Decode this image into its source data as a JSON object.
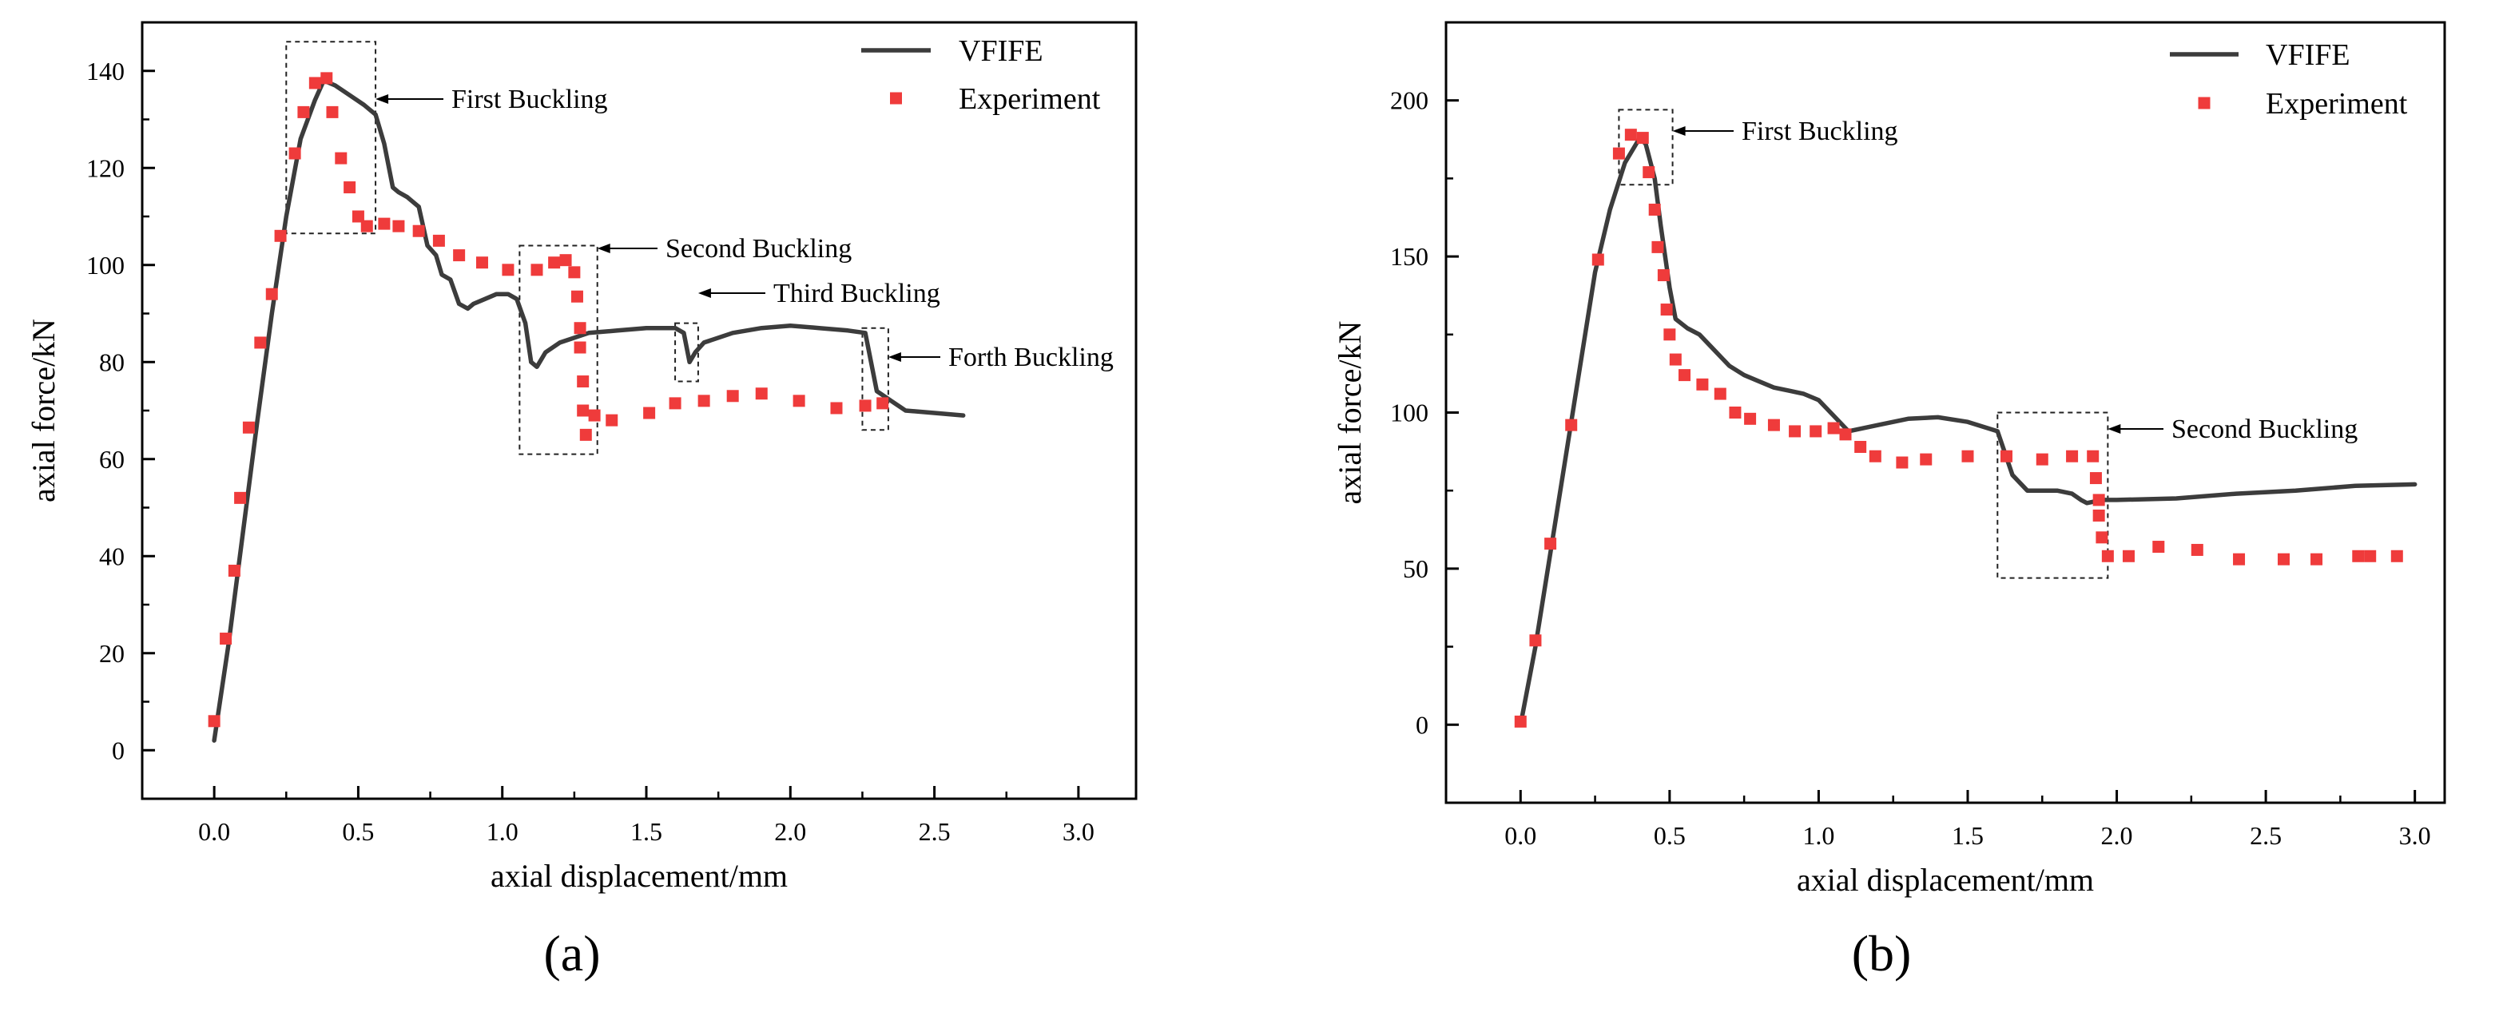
{
  "colors": {
    "vfife": "#3c3c3c",
    "experiment": "#ef3b3b",
    "axis": "#000000"
  },
  "chart_data": [
    {
      "panel": "(a)",
      "type": "line+scatter",
      "xlabel": "axial displacement/mm",
      "ylabel": "axial force/kN",
      "xlim": [
        -0.25,
        3.2
      ],
      "ylim": [
        -10,
        150
      ],
      "xticks": [
        0.0,
        0.5,
        1.0,
        1.5,
        2.0,
        2.5,
        3.0
      ],
      "xtick_labels": [
        "0.0",
        "0.5",
        "1.0",
        "1.5",
        "2.0",
        "2.5",
        "3.0"
      ],
      "yticks": [
        0,
        20,
        40,
        60,
        80,
        100,
        120,
        140
      ],
      "ytick_labels": [
        "0",
        "20",
        "40",
        "60",
        "80",
        "100",
        "120",
        "140"
      ],
      "legend": {
        "position": "top-right",
        "entries": [
          "VFIFE",
          "Experiment"
        ]
      },
      "series": [
        {
          "name": "VFIFE",
          "style": "line",
          "x": [
            0.0,
            0.05,
            0.1,
            0.15,
            0.2,
            0.25,
            0.3,
            0.35,
            0.38,
            0.42,
            0.47,
            0.52,
            0.56,
            0.59,
            0.62,
            0.64,
            0.67,
            0.71,
            0.74,
            0.77,
            0.79,
            0.82,
            0.85,
            0.88,
            0.9,
            0.94,
            0.98,
            1.02,
            1.05,
            1.08,
            1.1,
            1.12,
            1.15,
            1.2,
            1.3,
            1.4,
            1.5,
            1.6,
            1.63,
            1.65,
            1.67,
            1.7,
            1.8,
            1.9,
            2.0,
            2.1,
            2.2,
            2.26,
            2.28,
            2.3,
            2.35,
            2.4,
            2.5,
            2.6
          ],
          "y": [
            2,
            22,
            45,
            68,
            90,
            110,
            126,
            134,
            138,
            137,
            135,
            133,
            131,
            125,
            116,
            115,
            114,
            112,
            104,
            102,
            98,
            97,
            92,
            91,
            92,
            93,
            94,
            94,
            93,
            88,
            80,
            79,
            82,
            84,
            86,
            86.5,
            87,
            87,
            86,
            80,
            82,
            84,
            86,
            87,
            87.5,
            87,
            86.5,
            86,
            80,
            74,
            72,
            70,
            69.5,
            69
          ]
        },
        {
          "name": "Experiment",
          "style": "marker-square",
          "x": [
            0.0,
            0.04,
            0.07,
            0.09,
            0.12,
            0.16,
            0.2,
            0.23,
            0.28,
            0.31,
            0.35,
            0.39,
            0.41,
            0.44,
            0.47,
            0.5,
            0.53,
            0.59,
            0.64,
            0.71,
            0.78,
            0.85,
            0.93,
            1.02,
            1.12,
            1.18,
            1.22,
            1.25,
            1.26,
            1.27,
            1.27,
            1.28,
            1.28,
            1.29,
            1.32,
            1.38,
            1.51,
            1.6,
            1.7,
            1.8,
            1.9,
            2.03,
            2.16,
            2.26,
            2.32
          ],
          "y": [
            6,
            23,
            37,
            52,
            66.5,
            84,
            94,
            106,
            123,
            131.5,
            137.5,
            138.5,
            131.5,
            122,
            116,
            110,
            108,
            108.5,
            108,
            107,
            105,
            102,
            100.5,
            99,
            99,
            100.5,
            101,
            98.5,
            93.5,
            87,
            83,
            76,
            70,
            65,
            69,
            68,
            69.5,
            71.5,
            72,
            73,
            73.5,
            72,
            70.5,
            71,
            71.5
          ]
        }
      ],
      "annotations": [
        {
          "text": "First Buckling",
          "box": {
            "x": [
              0.25,
              0.56
            ],
            "y": [
              106.5,
              146
            ]
          }
        },
        {
          "text": "Second Buckling",
          "box": {
            "x": [
              1.06,
              1.33
            ],
            "y": [
              61,
              104
            ]
          }
        },
        {
          "text": "Third Buckling",
          "box": {
            "x": [
              1.6,
              1.68
            ],
            "y": [
              76,
              88
            ]
          }
        },
        {
          "text": "Forth Buckling",
          "box": {
            "x": [
              2.25,
              2.34
            ],
            "y": [
              66,
              87
            ]
          }
        }
      ],
      "caption": "(a)"
    },
    {
      "panel": "(b)",
      "type": "line+scatter",
      "xlabel": "axial displacement/mm",
      "ylabel": "axial force/kN",
      "xlim": [
        -0.25,
        3.1
      ],
      "ylim": [
        -25,
        225
      ],
      "xticks": [
        0.0,
        0.5,
        1.0,
        1.5,
        2.0,
        2.5,
        3.0
      ],
      "xtick_labels": [
        "0.0",
        "0.5",
        "1.0",
        "1.5",
        "2.0",
        "2.5",
        "3.0"
      ],
      "yticks": [
        0,
        50,
        100,
        150,
        200
      ],
      "ytick_labels": [
        "0",
        "50",
        "100",
        "150",
        "200"
      ],
      "legend": {
        "position": "top-right",
        "entries": [
          "VFIFE",
          "Experiment"
        ]
      },
      "series": [
        {
          "name": "VFIFE",
          "style": "line",
          "x": [
            0.0,
            0.05,
            0.1,
            0.15,
            0.2,
            0.25,
            0.3,
            0.35,
            0.4,
            0.42,
            0.45,
            0.47,
            0.5,
            0.52,
            0.56,
            0.6,
            0.65,
            0.7,
            0.75,
            0.8,
            0.85,
            0.9,
            0.95,
            1.0,
            1.05,
            1.08,
            1.1,
            1.2,
            1.3,
            1.4,
            1.5,
            1.6,
            1.65,
            1.7,
            1.8,
            1.85,
            1.88,
            1.9,
            1.95,
            2.0,
            2.2,
            2.4,
            2.6,
            2.8,
            3.0
          ],
          "y": [
            0,
            25,
            55,
            85,
            115,
            145,
            165,
            180,
            188,
            186,
            175,
            160,
            140,
            130,
            127,
            125,
            120,
            115,
            112,
            110,
            108,
            107,
            106,
            104,
            99,
            96,
            94,
            96,
            98,
            98.5,
            97,
            94,
            80,
            75,
            75,
            74,
            72,
            71,
            72,
            72,
            72.5,
            74,
            75,
            76.5,
            77
          ]
        },
        {
          "name": "Experiment",
          "style": "marker-square",
          "x": [
            0.0,
            0.05,
            0.1,
            0.17,
            0.26,
            0.33,
            0.37,
            0.41,
            0.43,
            0.45,
            0.46,
            0.48,
            0.49,
            0.5,
            0.52,
            0.55,
            0.61,
            0.67,
            0.72,
            0.77,
            0.85,
            0.92,
            0.99,
            1.05,
            1.09,
            1.14,
            1.19,
            1.28,
            1.36,
            1.5,
            1.63,
            1.75,
            1.85,
            1.92,
            1.93,
            1.94,
            1.94,
            1.95,
            1.97,
            2.04,
            2.14,
            2.27,
            2.41,
            2.56,
            2.67,
            2.81,
            2.85,
            2.94
          ],
          "y": [
            1,
            27,
            58,
            96,
            149,
            183,
            189,
            188,
            177,
            165,
            153,
            144,
            133,
            125,
            117,
            112,
            109,
            106,
            100,
            98,
            96,
            94,
            94,
            95,
            93,
            89,
            86,
            84,
            85,
            86,
            86,
            85,
            86,
            86,
            79,
            72,
            67,
            60,
            54,
            54,
            57,
            56,
            53,
            53,
            53,
            54,
            54,
            54
          ]
        }
      ],
      "annotations": [
        {
          "text": "First Buckling",
          "box": {
            "x": [
              0.33,
              0.51
            ],
            "y": [
              173,
              197
            ]
          }
        },
        {
          "text": "Second Buckling",
          "box": {
            "x": [
              1.6,
              1.97
            ],
            "y": [
              47,
              100
            ]
          }
        }
      ],
      "caption": "(b)"
    }
  ]
}
